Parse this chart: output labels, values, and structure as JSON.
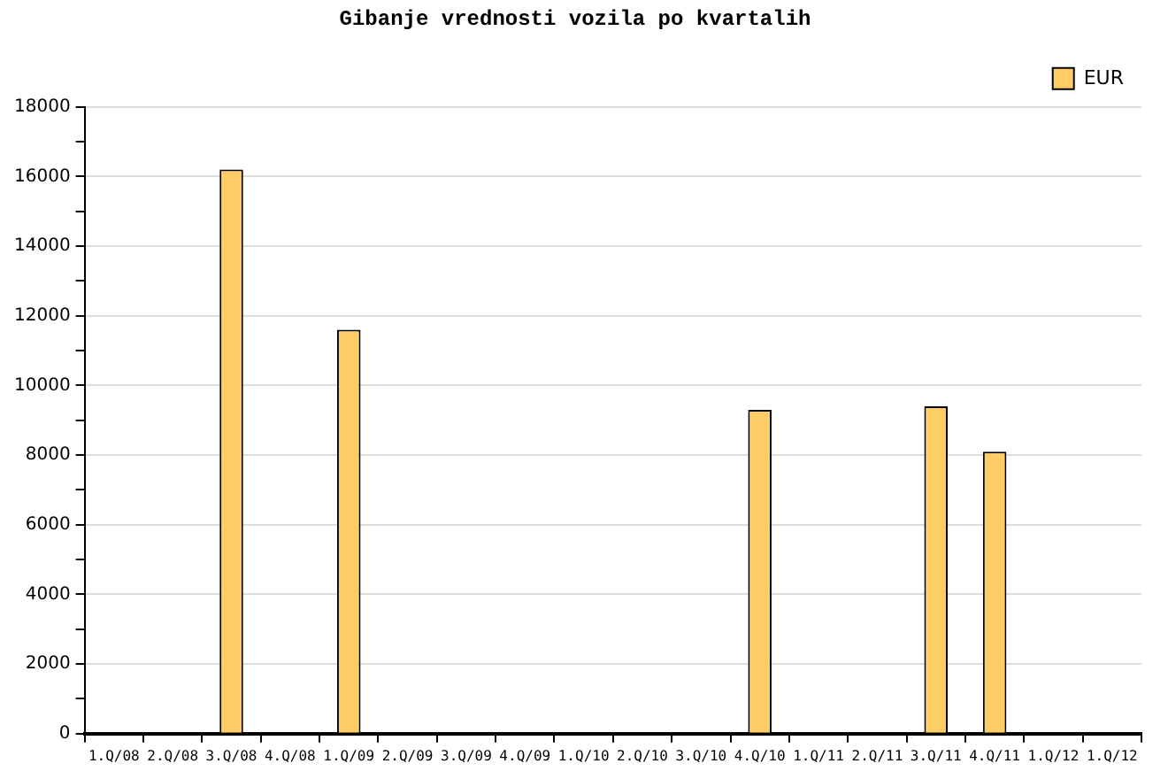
{
  "chart_data": {
    "type": "bar",
    "title": "Gibanje vrednosti vozila po kvartalih",
    "categories": [
      "1.Q/08",
      "2.Q/08",
      "3.Q/08",
      "4.Q/08",
      "1.Q/09",
      "2.Q/09",
      "3.Q/09",
      "4.Q/09",
      "1.Q/10",
      "2.Q/10",
      "3.Q/10",
      "4.Q/10",
      "1.Q/11",
      "2.Q/11",
      "3.Q/11",
      "4.Q/11",
      "1.Q/12",
      "1.Q/12"
    ],
    "series": [
      {
        "name": "EUR",
        "color": "#ffcc66",
        "values": [
          0,
          0,
          16200,
          0,
          11600,
          0,
          0,
          0,
          0,
          0,
          0,
          9300,
          0,
          0,
          9400,
          8100,
          0,
          0
        ]
      }
    ],
    "ylim": [
      0,
      18000
    ],
    "yticks": [
      0,
      {
        "value": 1000,
        "label": null
      },
      2000,
      {
        "value": 3000,
        "label": null
      },
      4000,
      {
        "value": 5000,
        "label": null
      },
      6000,
      {
        "value": 7000,
        "label": null
      },
      8000,
      {
        "value": 9000,
        "label": null
      },
      10000,
      {
        "value": 11000,
        "label": null
      },
      12000,
      {
        "value": 13000,
        "label": null
      },
      14000,
      {
        "value": 15000,
        "label": null
      },
      16000,
      {
        "value": 17000,
        "label": null
      },
      18000
    ],
    "grid": "y",
    "legend": "top right"
  }
}
